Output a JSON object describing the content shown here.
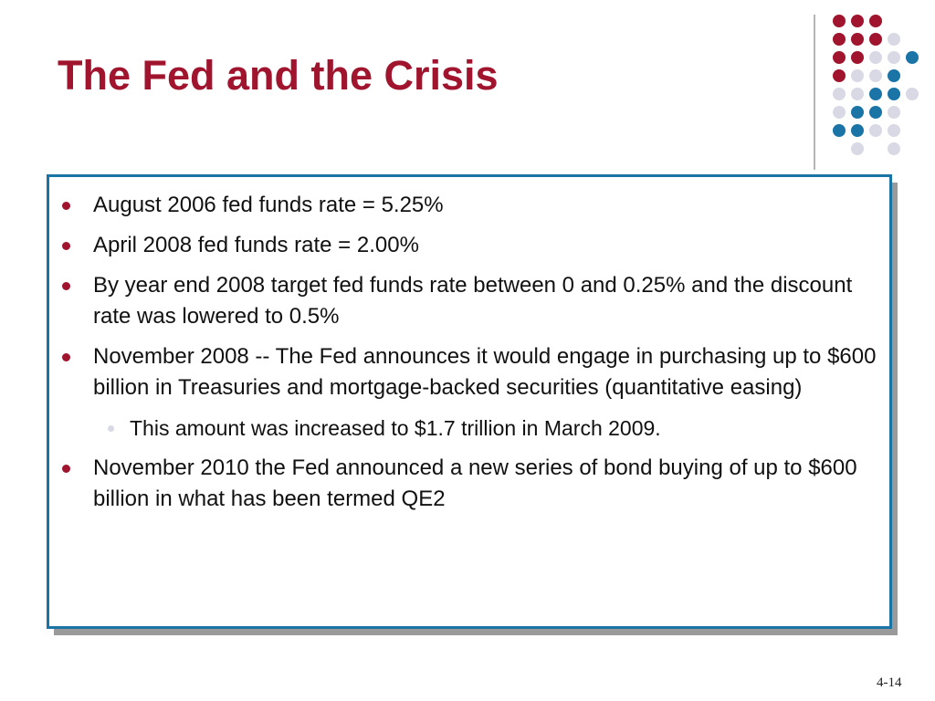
{
  "slide": {
    "title": "The Fed and the Crisis",
    "page_number": "4-14"
  },
  "bullets": [
    {
      "level": 1,
      "text": "August 2006 fed funds rate = 5.25%"
    },
    {
      "level": 1,
      "text": "April 2008 fed funds rate = 2.00%"
    },
    {
      "level": 1,
      "text": "By year end 2008 target fed funds rate between 0 and 0.25% and the discount rate was lowered to 0.5%"
    },
    {
      "level": 1,
      "text": "November 2008 -- The Fed announces it would engage in purchasing up to $600 billion in Treasuries and mortgage-backed securities (quantitative easing)"
    },
    {
      "level": 2,
      "text": "This amount was increased to $1.7 trillion in March 2009."
    },
    {
      "level": 1,
      "text": "November 2010 the Fed announced a new series of bond buying of up to $600 billion in what has been termed QE2"
    }
  ],
  "colors": {
    "title": "#a0142e",
    "accent_red": "#a0142e",
    "accent_gray": "#d9d9e6",
    "accent_blue": "#1a74a6",
    "box_border": "#1a74a6"
  },
  "decoration": {
    "dot_grid_rows": [
      [
        "red",
        "red",
        "red",
        "none"
      ],
      [
        "red",
        "red",
        "red",
        "gray"
      ],
      [
        "red",
        "red",
        "gray",
        "gray",
        "blue"
      ],
      [
        "red",
        "gray",
        "gray",
        "blue"
      ],
      [
        "gray",
        "gray",
        "blue",
        "blue",
        "gray"
      ],
      [
        "gray",
        "blue",
        "blue",
        "gray"
      ],
      [
        "blue",
        "blue",
        "gray",
        "gray"
      ],
      [
        "none",
        "gray",
        "none",
        "gray"
      ]
    ]
  }
}
